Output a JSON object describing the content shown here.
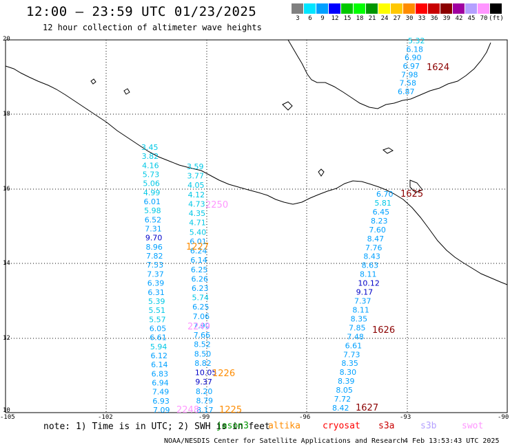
{
  "header": {
    "title": "12:00 — 23:59 UTC 01/23/2025",
    "subtitle": "12 hour collection of altimeter wave heights"
  },
  "color_scale": {
    "labels": [
      "3",
      "6",
      "9",
      "12",
      "15",
      "18",
      "21",
      "24",
      "27",
      "30",
      "33",
      "36",
      "39",
      "42",
      "45",
      "70",
      "(ft)"
    ],
    "colors": [
      "#808080",
      "#00e5ff",
      "#00a0ff",
      "#0000ff",
      "#00c800",
      "#00ff00",
      "#009600",
      "#ffff00",
      "#ffc800",
      "#ff8c00",
      "#ff0000",
      "#c80000",
      "#8b0000",
      "#a000a0",
      "#b4a0ff",
      "#ff96ff",
      "#000000"
    ]
  },
  "axes": {
    "lon_labels": [
      "-105",
      "-102",
      "-99",
      "-96",
      "-93",
      "-90"
    ],
    "lat_labels": [
      "20",
      "18",
      "16",
      "14",
      "12",
      "10"
    ]
  },
  "pass_labels": [
    {
      "text": "1624",
      "color": "#8b0000"
    },
    {
      "text": "1625",
      "color": "#8b0000"
    },
    {
      "text": "2250",
      "color": "#ff96ff"
    },
    {
      "text": "1227",
      "color": "#ff8c00"
    },
    {
      "text": "1626",
      "color": "#8b0000"
    },
    {
      "text": "2249",
      "color": "#ff96ff"
    },
    {
      "text": "1226",
      "color": "#ff8c00"
    },
    {
      "text": "1627",
      "color": "#8b0000"
    },
    {
      "text": "2248",
      "color": "#ff96ff"
    },
    {
      "text": "1225",
      "color": "#ff8c00"
    }
  ],
  "tracks": {
    "track_a": [
      "5.32",
      "6.18",
      "6.90",
      "6.97",
      "7.98",
      "7.58",
      "6.87"
    ],
    "track_b": [
      "3.45",
      "3.82",
      "4.16",
      "5.73",
      "5.06",
      "4.99",
      "6.01",
      "5.98",
      "6.52",
      "7.31",
      "9.70",
      "8.96",
      "7.82",
      "7.53",
      "7.37",
      "6.39",
      "6.31",
      "5.39",
      "5.51",
      "5.57",
      "6.05",
      "6.61",
      "5.94",
      "6.12",
      "6.14",
      "6.83",
      "6.94",
      "7.49",
      "6.93",
      "7.09"
    ],
    "track_c": [
      "3.59",
      "3.77",
      "4.05",
      "4.12",
      "4.73",
      "4.35",
      "4.71",
      "5.40",
      "6.01",
      "6.24",
      "6.14",
      "6.25",
      "6.26",
      "6.23",
      "5.74",
      "6.25",
      "7.06",
      "7.90",
      "7.66",
      "8.52",
      "8.50",
      "8.82",
      "10.05",
      "9.37",
      "8.20",
      "8.79",
      "8.17"
    ],
    "track_d": [
      "6.70",
      "5.81",
      "6.45",
      "8.23",
      "7.60",
      "8.47",
      "7.76",
      "8.43",
      "8.63",
      "8.11",
      "10.12",
      "9.17",
      "7.37",
      "8.11",
      "8.35",
      "7.85",
      "7.48",
      "6.61",
      "7.73",
      "8.35",
      "8.30",
      "8.39",
      "8.05",
      "7.72",
      "8.42"
    ]
  },
  "footer": {
    "note": "note: 1) Time is in UTC; 2) SWH is in feet",
    "legend": [
      {
        "text": "jason3",
        "color": "#009600"
      },
      {
        "text": "altika",
        "color": "#ff8c00"
      },
      {
        "text": "cryosat",
        "color": "#ff0000"
      },
      {
        "text": "s3a",
        "color": "#c80000"
      },
      {
        "text": "s3b",
        "color": "#b4a0ff"
      },
      {
        "text": "swot",
        "color": "#ff96ff"
      }
    ],
    "credit": "NOAA/NESDIS Center for Satellite Applications and Research",
    "timestamp": "4 Feb 13:53:43 UTC 2025"
  }
}
